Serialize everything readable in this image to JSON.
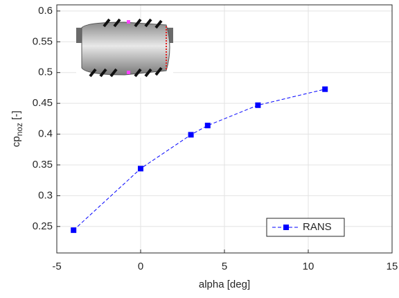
{
  "chart_data": {
    "type": "line",
    "x": [
      -4,
      0,
      3,
      4,
      7,
      11
    ],
    "series": [
      {
        "name": "RANS",
        "color": "#0000ff",
        "values": [
          0.244,
          0.344,
          0.399,
          0.414,
          0.447,
          0.473
        ]
      }
    ],
    "xlim": [
      -5,
      15
    ],
    "xticks": [
      -5,
      0,
      5,
      10,
      15
    ],
    "ylim": [
      0.207,
      0.61
    ],
    "yticks": [
      0.25,
      0.3,
      0.35,
      0.4,
      0.45,
      0.5,
      0.55,
      0.6
    ],
    "xlabel": "alpha [deg]",
    "ylabel": "cp",
    "ylabel_subscript": "noz",
    "ylabel_unit": "[-]",
    "grid": true,
    "legend": "lower right"
  }
}
